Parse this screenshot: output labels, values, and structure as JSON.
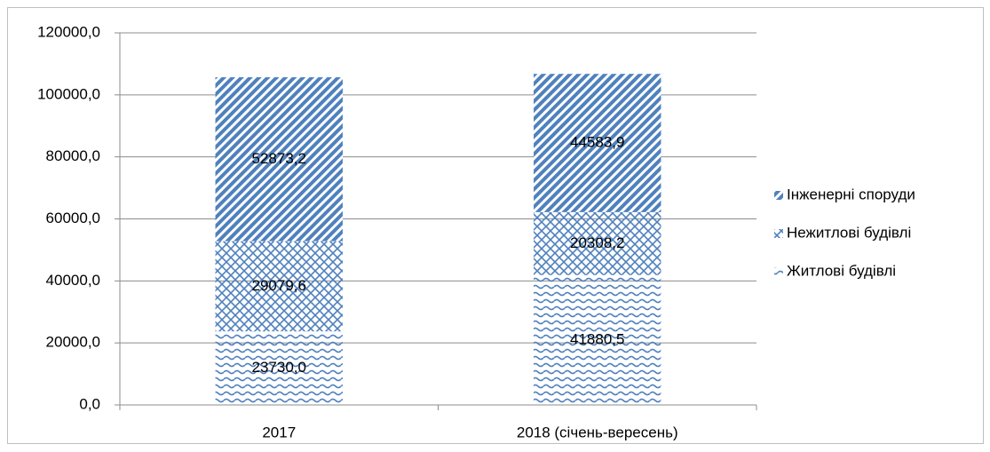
{
  "chart_data": {
    "type": "stacked_bar",
    "categories": [
      "2017",
      "2018 (січень-вересень)"
    ],
    "series": [
      {
        "name": "Житлові будівлі",
        "color": "#4f81bd",
        "values": [
          23730.0,
          41880.5
        ],
        "value_labels": [
          "23730,0",
          "41880,5"
        ]
      },
      {
        "name": "Нежитлові будівлі",
        "color": "#4f81bd",
        "values": [
          29079.6,
          20308.2
        ],
        "value_labels": [
          "29079,6",
          "20308,2"
        ]
      },
      {
        "name": "Інженерні споруди",
        "color": "#4f81bd",
        "values": [
          52873.2,
          44583.9
        ],
        "value_labels": [
          "52873,2",
          "44583,9"
        ]
      }
    ],
    "ylim": [
      0,
      120000
    ],
    "yticks": [
      {
        "value": 0,
        "label": "0,0"
      },
      {
        "value": 20000,
        "label": "20000,0"
      },
      {
        "value": 40000,
        "label": "40000,0"
      },
      {
        "value": 60000,
        "label": "60000,0"
      },
      {
        "value": 80000,
        "label": "80000,0"
      },
      {
        "value": 100000,
        "label": "100000,0"
      },
      {
        "value": 120000,
        "label": "120000,0"
      }
    ],
    "grid": true,
    "legend": "right"
  }
}
